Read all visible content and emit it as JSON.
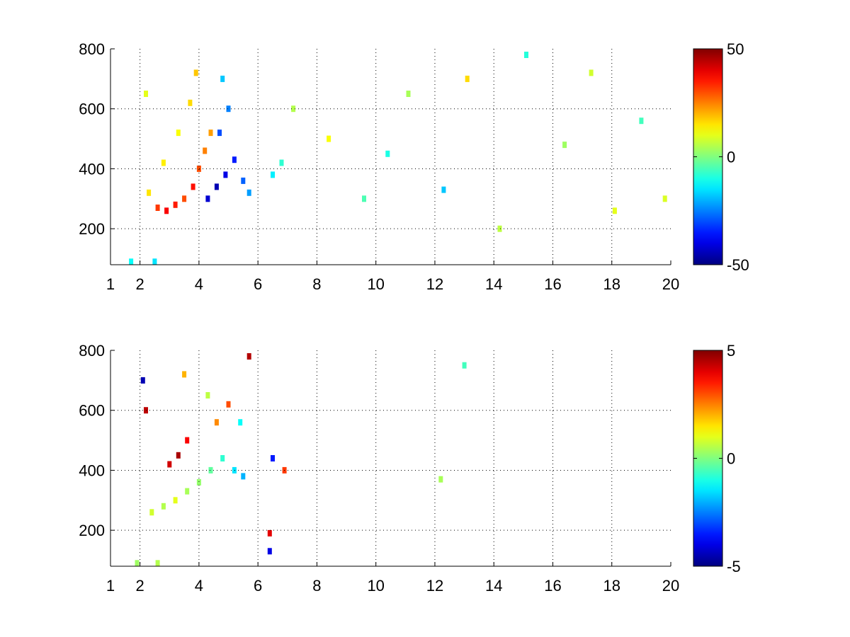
{
  "chart_data": [
    {
      "type": "heatmap",
      "title": "",
      "xlabel": "",
      "ylabel": "",
      "xlim": [
        1,
        20
      ],
      "ylim": [
        80,
        800
      ],
      "x_ticks": [
        {
          "value": 1,
          "label": "1"
        },
        {
          "value": 2,
          "label": "2"
        },
        {
          "value": 4,
          "label": "4"
        },
        {
          "value": 6,
          "label": "6"
        },
        {
          "value": 8,
          "label": "8"
        },
        {
          "value": 10,
          "label": "10"
        },
        {
          "value": 12,
          "label": "12"
        },
        {
          "value": 14,
          "label": "14"
        },
        {
          "value": 16,
          "label": "16"
        },
        {
          "value": 18,
          "label": "18"
        },
        {
          "value": 20,
          "label": "20"
        }
      ],
      "y_ticks": [
        {
          "value": 200,
          "label": "200"
        },
        {
          "value": 400,
          "label": "400"
        },
        {
          "value": 600,
          "label": "600"
        },
        {
          "value": 800,
          "label": "800"
        }
      ],
      "grid": true,
      "grid_style": "dotted",
      "colormap": "jet",
      "colorbar": {
        "range": [
          -50,
          50
        ],
        "ticks": [
          {
            "value": 50,
            "label": "50"
          },
          {
            "value": 0,
            "label": "0"
          },
          {
            "value": -50,
            "label": "-50"
          }
        ]
      },
      "cells": [
        {
          "x": 2.6,
          "y": 270,
          "v": 32
        },
        {
          "x": 2.9,
          "y": 260,
          "v": 38
        },
        {
          "x": 3.2,
          "y": 280,
          "v": 35
        },
        {
          "x": 3.5,
          "y": 300,
          "v": 30
        },
        {
          "x": 3.8,
          "y": 340,
          "v": 36
        },
        {
          "x": 4.0,
          "y": 400,
          "v": 30
        },
        {
          "x": 4.2,
          "y": 460,
          "v": 25
        },
        {
          "x": 4.4,
          "y": 520,
          "v": 22
        },
        {
          "x": 2.3,
          "y": 320,
          "v": 15
        },
        {
          "x": 2.8,
          "y": 420,
          "v": 14
        },
        {
          "x": 3.3,
          "y": 520,
          "v": 12
        },
        {
          "x": 3.7,
          "y": 620,
          "v": 16
        },
        {
          "x": 3.9,
          "y": 720,
          "v": 18
        },
        {
          "x": 2.2,
          "y": 650,
          "v": 10
        },
        {
          "x": 4.3,
          "y": 300,
          "v": -42
        },
        {
          "x": 4.6,
          "y": 340,
          "v": -45
        },
        {
          "x": 4.9,
          "y": 380,
          "v": -40
        },
        {
          "x": 5.2,
          "y": 430,
          "v": -35
        },
        {
          "x": 4.7,
          "y": 520,
          "v": -30
        },
        {
          "x": 5.0,
          "y": 600,
          "v": -25
        },
        {
          "x": 4.8,
          "y": 700,
          "v": -18
        },
        {
          "x": 5.5,
          "y": 360,
          "v": -28
        },
        {
          "x": 5.7,
          "y": 320,
          "v": -22
        },
        {
          "x": 1.7,
          "y": 90,
          "v": -12
        },
        {
          "x": 2.5,
          "y": 90,
          "v": -15
        },
        {
          "x": 6.5,
          "y": 380,
          "v": -14
        },
        {
          "x": 6.8,
          "y": 420,
          "v": -8
        },
        {
          "x": 7.2,
          "y": 600,
          "v": 5
        },
        {
          "x": 8.4,
          "y": 500,
          "v": 12
        },
        {
          "x": 9.6,
          "y": 300,
          "v": -5
        },
        {
          "x": 10.4,
          "y": 450,
          "v": -10
        },
        {
          "x": 11.1,
          "y": 650,
          "v": 4
        },
        {
          "x": 12.3,
          "y": 330,
          "v": -18
        },
        {
          "x": 13.1,
          "y": 700,
          "v": 16
        },
        {
          "x": 14.2,
          "y": 200,
          "v": 6
        },
        {
          "x": 15.1,
          "y": 780,
          "v": -9
        },
        {
          "x": 16.4,
          "y": 480,
          "v": 3
        },
        {
          "x": 17.3,
          "y": 720,
          "v": 8
        },
        {
          "x": 18.1,
          "y": 260,
          "v": 10
        },
        {
          "x": 19.0,
          "y": 560,
          "v": -6
        },
        {
          "x": 19.8,
          "y": 300,
          "v": 9
        }
      ]
    },
    {
      "type": "heatmap",
      "title": "",
      "xlabel": "",
      "ylabel": "",
      "xlim": [
        1,
        20
      ],
      "ylim": [
        80,
        800
      ],
      "x_ticks": [
        {
          "value": 1,
          "label": "1"
        },
        {
          "value": 2,
          "label": "2"
        },
        {
          "value": 4,
          "label": "4"
        },
        {
          "value": 6,
          "label": "6"
        },
        {
          "value": 8,
          "label": "8"
        },
        {
          "value": 10,
          "label": "10"
        },
        {
          "value": 12,
          "label": "12"
        },
        {
          "value": 14,
          "label": "14"
        },
        {
          "value": 16,
          "label": "16"
        },
        {
          "value": 18,
          "label": "18"
        },
        {
          "value": 20,
          "label": "20"
        }
      ],
      "y_ticks": [
        {
          "value": 200,
          "label": "200"
        },
        {
          "value": 400,
          "label": "400"
        },
        {
          "value": 600,
          "label": "600"
        },
        {
          "value": 800,
          "label": "800"
        }
      ],
      "grid": true,
      "grid_style": "dotted",
      "colormap": "jet",
      "colorbar": {
        "range": [
          -5,
          5
        ],
        "ticks": [
          {
            "value": 5,
            "label": "5"
          },
          {
            "value": 0,
            "label": "0"
          },
          {
            "value": -5,
            "label": "-5"
          }
        ]
      },
      "cells": [
        {
          "x": 2.4,
          "y": 260,
          "v": 0.8
        },
        {
          "x": 2.8,
          "y": 280,
          "v": 0.5
        },
        {
          "x": 3.2,
          "y": 300,
          "v": 1.0
        },
        {
          "x": 3.6,
          "y": 330,
          "v": 0.4
        },
        {
          "x": 4.0,
          "y": 360,
          "v": 0.2
        },
        {
          "x": 4.4,
          "y": 400,
          "v": -0.3
        },
        {
          "x": 4.8,
          "y": 440,
          "v": -0.8
        },
        {
          "x": 5.2,
          "y": 400,
          "v": -1.5
        },
        {
          "x": 5.5,
          "y": 380,
          "v": -2.0
        },
        {
          "x": 3.0,
          "y": 420,
          "v": 4.2
        },
        {
          "x": 3.3,
          "y": 450,
          "v": 4.6
        },
        {
          "x": 3.6,
          "y": 500,
          "v": 3.8
        },
        {
          "x": 2.1,
          "y": 700,
          "v": -4.5
        },
        {
          "x": 2.2,
          "y": 600,
          "v": 4.4
        },
        {
          "x": 3.5,
          "y": 720,
          "v": 2.0
        },
        {
          "x": 4.3,
          "y": 650,
          "v": 0.6
        },
        {
          "x": 4.6,
          "y": 560,
          "v": 2.4
        },
        {
          "x": 5.0,
          "y": 620,
          "v": 3.0
        },
        {
          "x": 5.4,
          "y": 560,
          "v": -1.2
        },
        {
          "x": 5.7,
          "y": 780,
          "v": 4.5
        },
        {
          "x": 1.9,
          "y": 90,
          "v": 0.3
        },
        {
          "x": 2.6,
          "y": 90,
          "v": 0.5
        },
        {
          "x": 6.4,
          "y": 190,
          "v": 4.0
        },
        {
          "x": 6.4,
          "y": 130,
          "v": -4.0
        },
        {
          "x": 6.5,
          "y": 440,
          "v": -3.5
        },
        {
          "x": 6.9,
          "y": 400,
          "v": 3.2
        },
        {
          "x": 13.0,
          "y": 750,
          "v": -0.6
        },
        {
          "x": 12.2,
          "y": 370,
          "v": 0.4
        }
      ]
    }
  ]
}
